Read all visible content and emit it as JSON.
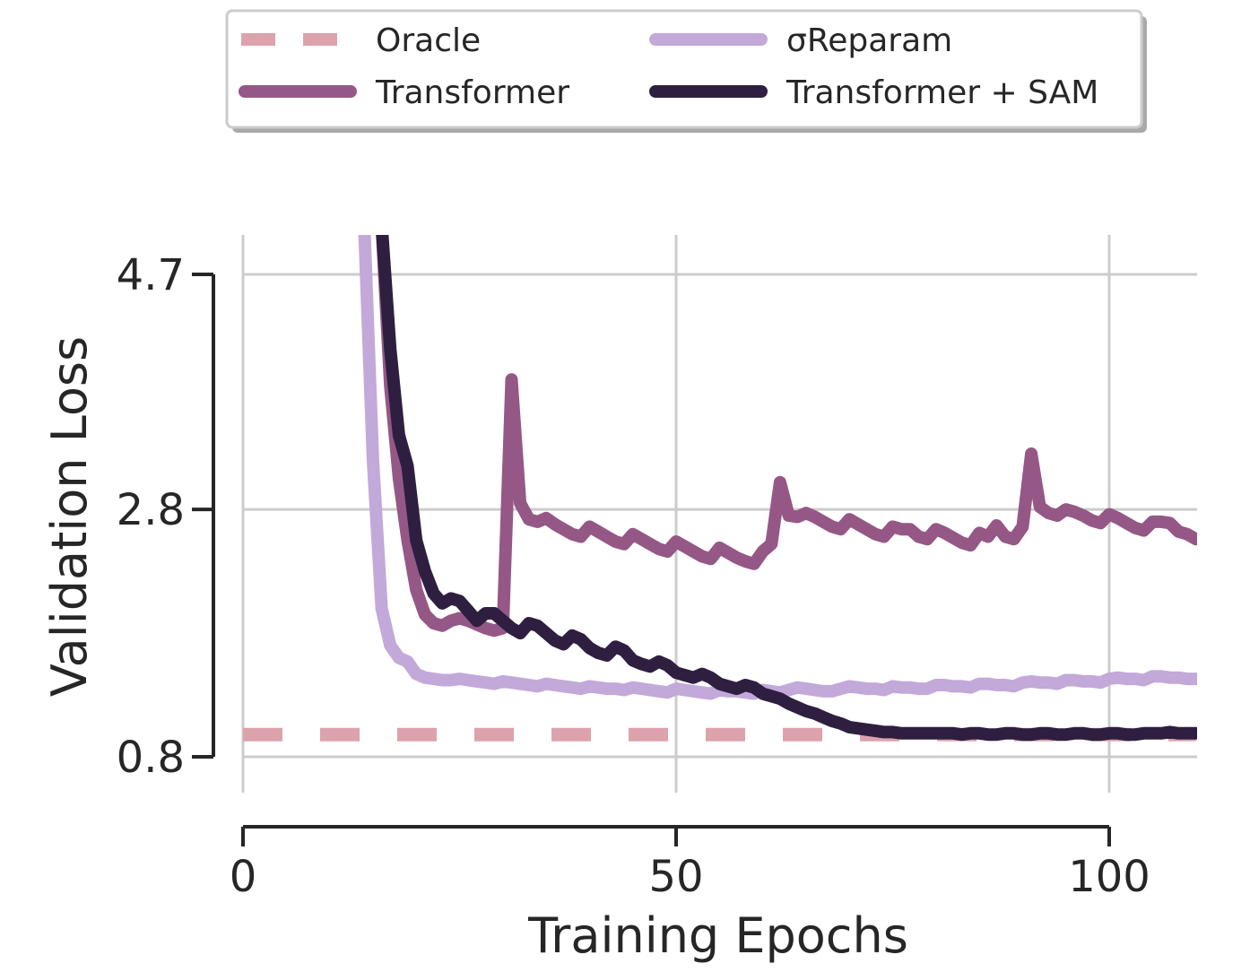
{
  "chart_data": {
    "type": "line",
    "title": "",
    "xlabel": "Training Epochs",
    "ylabel": "Validation Loss",
    "xlim": [
      0,
      110
    ],
    "ylim": [
      0.8,
      4.7
    ],
    "x_ticks": [
      0,
      50,
      100
    ],
    "x_tick_labels": [
      "0",
      "50",
      "100"
    ],
    "y_ticks": [
      0.8,
      2.8,
      4.7
    ],
    "y_tick_labels": [
      "0.8",
      "2.8",
      "4.7"
    ],
    "grid": true,
    "legend_position": "top (outside, above plot)",
    "series": [
      {
        "name": "Oracle",
        "color": "#dca3ac",
        "style": "dashed",
        "x": [
          0,
          110
        ],
        "y": [
          0.98,
          0.98
        ]
      },
      {
        "name": "Transformer",
        "color": "#955886",
        "style": "solid",
        "x": [
          16,
          17,
          18,
          19,
          20,
          21,
          22,
          23,
          24,
          25,
          26,
          27,
          28,
          29,
          30,
          31,
          32,
          33,
          34,
          35,
          36,
          37,
          38,
          39,
          40,
          41,
          42,
          43,
          44,
          45,
          46,
          47,
          48,
          49,
          50,
          51,
          52,
          53,
          54,
          55,
          56,
          57,
          58,
          59,
          60,
          61,
          62,
          63,
          64,
          65,
          66,
          67,
          68,
          69,
          70,
          71,
          72,
          73,
          74,
          75,
          76,
          77,
          78,
          79,
          80,
          81,
          82,
          83,
          84,
          85,
          86,
          87,
          88,
          89,
          90,
          91,
          92,
          93,
          94,
          95,
          96,
          97,
          98,
          99,
          100,
          101,
          102,
          103,
          104,
          105,
          106,
          107,
          108,
          109,
          110
        ],
        "y": [
          5.1,
          3.8,
          3.05,
          2.55,
          2.15,
          1.95,
          1.88,
          1.86,
          1.9,
          1.92,
          1.9,
          1.87,
          1.84,
          1.82,
          1.84,
          3.85,
          2.85,
          2.72,
          2.7,
          2.73,
          2.68,
          2.64,
          2.6,
          2.58,
          2.66,
          2.62,
          2.58,
          2.54,
          2.52,
          2.6,
          2.56,
          2.52,
          2.48,
          2.46,
          2.54,
          2.5,
          2.46,
          2.42,
          2.4,
          2.49,
          2.45,
          2.41,
          2.38,
          2.36,
          2.46,
          2.52,
          3.02,
          2.75,
          2.74,
          2.77,
          2.74,
          2.7,
          2.66,
          2.64,
          2.72,
          2.68,
          2.64,
          2.6,
          2.58,
          2.66,
          2.64,
          2.64,
          2.58,
          2.56,
          2.64,
          2.61,
          2.57,
          2.53,
          2.51,
          2.61,
          2.58,
          2.67,
          2.58,
          2.56,
          2.66,
          3.25,
          2.82,
          2.77,
          2.75,
          2.8,
          2.78,
          2.75,
          2.71,
          2.69,
          2.76,
          2.73,
          2.69,
          2.65,
          2.63,
          2.7,
          2.7,
          2.69,
          2.62,
          2.6,
          2.56
        ]
      },
      {
        "name": "σReparam",
        "color": "#c3a8da",
        "style": "solid",
        "x": [
          14,
          15,
          16,
          17,
          18,
          19,
          20,
          21,
          22,
          23,
          24,
          25,
          26,
          27,
          28,
          29,
          30,
          31,
          32,
          33,
          34,
          35,
          36,
          37,
          38,
          39,
          40,
          41,
          42,
          43,
          44,
          45,
          46,
          47,
          48,
          49,
          50,
          51,
          52,
          53,
          54,
          55,
          56,
          57,
          58,
          59,
          60,
          61,
          62,
          63,
          64,
          65,
          66,
          67,
          68,
          69,
          70,
          71,
          72,
          73,
          74,
          75,
          76,
          77,
          78,
          79,
          80,
          81,
          82,
          83,
          84,
          85,
          86,
          87,
          88,
          89,
          90,
          91,
          92,
          93,
          94,
          95,
          96,
          97,
          98,
          99,
          100,
          101,
          102,
          103,
          104,
          105,
          106,
          107,
          108,
          109,
          110
        ],
        "y": [
          5.1,
          3.2,
          2.0,
          1.7,
          1.6,
          1.57,
          1.47,
          1.44,
          1.43,
          1.42,
          1.42,
          1.43,
          1.42,
          1.41,
          1.4,
          1.39,
          1.41,
          1.4,
          1.39,
          1.38,
          1.37,
          1.39,
          1.38,
          1.37,
          1.36,
          1.35,
          1.37,
          1.36,
          1.35,
          1.35,
          1.34,
          1.36,
          1.35,
          1.34,
          1.33,
          1.32,
          1.35,
          1.34,
          1.33,
          1.32,
          1.31,
          1.34,
          1.33,
          1.33,
          1.32,
          1.31,
          1.34,
          1.33,
          1.32,
          1.34,
          1.36,
          1.35,
          1.34,
          1.33,
          1.33,
          1.35,
          1.37,
          1.36,
          1.35,
          1.35,
          1.34,
          1.37,
          1.36,
          1.36,
          1.35,
          1.35,
          1.38,
          1.38,
          1.37,
          1.37,
          1.36,
          1.39,
          1.39,
          1.38,
          1.38,
          1.37,
          1.4,
          1.41,
          1.4,
          1.4,
          1.39,
          1.42,
          1.42,
          1.41,
          1.41,
          1.4,
          1.43,
          1.44,
          1.43,
          1.43,
          1.42,
          1.45,
          1.45,
          1.44,
          1.44,
          1.43,
          1.43
        ]
      },
      {
        "name": "Transformer + SAM",
        "color": "#2e1f41",
        "style": "solid",
        "x": [
          16,
          17,
          18,
          19,
          20,
          21,
          22,
          23,
          24,
          25,
          26,
          27,
          28,
          29,
          30,
          31,
          32,
          33,
          34,
          35,
          36,
          37,
          38,
          39,
          40,
          41,
          42,
          43,
          44,
          45,
          46,
          47,
          48,
          49,
          50,
          51,
          52,
          53,
          54,
          55,
          56,
          57,
          58,
          59,
          60,
          61,
          62,
          63,
          64,
          65,
          66,
          67,
          68,
          69,
          70,
          71,
          72,
          73,
          74,
          75,
          76,
          77,
          78,
          79,
          80,
          81,
          82,
          83,
          84,
          85,
          86,
          87,
          88,
          89,
          90,
          91,
          92,
          93,
          94,
          95,
          96,
          97,
          98,
          99,
          100,
          101,
          102,
          103,
          104,
          105,
          106,
          107,
          108,
          109,
          110
        ],
        "y": [
          5.1,
          4.1,
          3.4,
          3.15,
          2.55,
          2.3,
          2.12,
          2.04,
          2.08,
          2.06,
          1.98,
          1.9,
          1.96,
          1.96,
          1.9,
          1.84,
          1.8,
          1.88,
          1.86,
          1.8,
          1.74,
          1.71,
          1.78,
          1.75,
          1.68,
          1.64,
          1.62,
          1.69,
          1.66,
          1.58,
          1.55,
          1.53,
          1.57,
          1.54,
          1.48,
          1.46,
          1.44,
          1.47,
          1.44,
          1.39,
          1.37,
          1.35,
          1.38,
          1.36,
          1.31,
          1.29,
          1.27,
          1.23,
          1.2,
          1.17,
          1.15,
          1.12,
          1.09,
          1.07,
          1.04,
          1.03,
          1.02,
          1.01,
          1.0,
          1.0,
          0.99,
          0.99,
          0.99,
          0.99,
          0.99,
          0.99,
          0.99,
          0.98,
          0.99,
          0.99,
          0.98,
          0.98,
          0.99,
          0.99,
          0.98,
          0.98,
          0.99,
          0.99,
          0.98,
          0.98,
          0.99,
          0.99,
          0.98,
          0.98,
          0.99,
          0.99,
          0.98,
          0.98,
          0.99,
          0.99,
          0.99,
          1.0,
          0.99,
          0.99,
          0.99
        ]
      }
    ]
  }
}
